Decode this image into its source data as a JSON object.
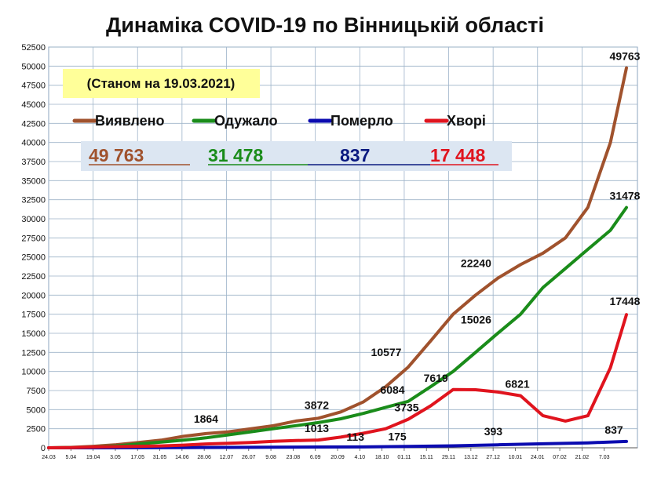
{
  "chart_data": {
    "type": "line",
    "title": "Динаміка COVID-19 по Вінницькій області",
    "subtitle": "(Станом на 19.03.2021)",
    "ylim": [
      0,
      52500
    ],
    "yticks": [
      "0",
      "2500",
      "5000",
      "7500",
      "10000",
      "12500",
      "15000",
      "17500",
      "20000",
      "22500",
      "25000",
      "27500",
      "30000",
      "32500",
      "35000",
      "37500",
      "40000",
      "42500",
      "45000",
      "47500",
      "50000",
      "52500"
    ],
    "ytick_values": [
      0,
      2500,
      5000,
      7500,
      10000,
      12500,
      15000,
      17500,
      20000,
      22500,
      25000,
      27500,
      30000,
      32500,
      35000,
      37500,
      40000,
      42500,
      45000,
      47500,
      50000,
      52500
    ],
    "xticks": [
      "24.03",
      "5.04",
      "19.04",
      "3.05",
      "17.05",
      "31.05",
      "14.06",
      "28.06",
      "12.07",
      "26.07",
      "9.08",
      "23.08",
      "6.09",
      "20.09",
      "4.10",
      "18.10",
      "01.11",
      "15.11",
      "29.11",
      "13.12",
      "27.12",
      "10.01",
      "24.01",
      "07.02",
      "21.02",
      "7.03"
    ],
    "x_grid_every": 2,
    "x_days_total": 360,
    "legend": {
      "placement": "top-left",
      "items": [
        {
          "name": "Виявлено",
          "color": "#a0522d"
        },
        {
          "name": "Одужало",
          "color": "#1a8c1a"
        },
        {
          "name": "Померло",
          "color": "#0b0bb0"
        },
        {
          "name": "Хворі",
          "color": "#e0141e"
        }
      ]
    },
    "totals": [
      {
        "value": "49 763",
        "color": "#a0522d"
      },
      {
        "value": "31 478",
        "color": "#1a8c1a"
      },
      {
        "value": "837",
        "color": "#0b1a80"
      },
      {
        "value": "17 448",
        "color": "#e0141e"
      }
    ],
    "grid": true,
    "series": [
      {
        "name": "Виявлено",
        "color": "#a0522d",
        "points": [
          [
            0,
            0
          ],
          [
            14,
            50
          ],
          [
            28,
            200
          ],
          [
            42,
            400
          ],
          [
            56,
            700
          ],
          [
            70,
            1000
          ],
          [
            84,
            1500
          ],
          [
            98,
            1864
          ],
          [
            112,
            2100
          ],
          [
            126,
            2500
          ],
          [
            140,
            2900
          ],
          [
            154,
            3500
          ],
          [
            168,
            3872
          ],
          [
            182,
            4700
          ],
          [
            196,
            6000
          ],
          [
            210,
            8000
          ],
          [
            224,
            10577
          ],
          [
            238,
            14000
          ],
          [
            252,
            17500
          ],
          [
            266,
            20000
          ],
          [
            280,
            22240
          ],
          [
            294,
            24000
          ],
          [
            308,
            25500
          ],
          [
            322,
            27500
          ],
          [
            336,
            31500
          ],
          [
            350,
            40000
          ],
          [
            360,
            49763
          ]
        ]
      },
      {
        "name": "Одужало",
        "color": "#1a8c1a",
        "points": [
          [
            0,
            0
          ],
          [
            14,
            20
          ],
          [
            28,
            100
          ],
          [
            42,
            250
          ],
          [
            56,
            500
          ],
          [
            70,
            750
          ],
          [
            84,
            1000
          ],
          [
            98,
            1300
          ],
          [
            112,
            1700
          ],
          [
            126,
            2100
          ],
          [
            140,
            2500
          ],
          [
            154,
            2900
          ],
          [
            168,
            3300
          ],
          [
            182,
            3800
          ],
          [
            196,
            4500
          ],
          [
            210,
            5300
          ],
          [
            224,
            6084
          ],
          [
            238,
            8000
          ],
          [
            252,
            10000
          ],
          [
            266,
            12500
          ],
          [
            280,
            15026
          ],
          [
            294,
            17500
          ],
          [
            308,
            21000
          ],
          [
            322,
            23500
          ],
          [
            336,
            26000
          ],
          [
            350,
            28500
          ],
          [
            360,
            31478
          ]
        ]
      },
      {
        "name": "Померло",
        "color": "#0b0bb0",
        "points": [
          [
            0,
            0
          ],
          [
            28,
            5
          ],
          [
            56,
            15
          ],
          [
            84,
            30
          ],
          [
            112,
            55
          ],
          [
            140,
            80
          ],
          [
            168,
            100
          ],
          [
            196,
            113
          ],
          [
            224,
            175
          ],
          [
            252,
            260
          ],
          [
            280,
            393
          ],
          [
            308,
            520
          ],
          [
            336,
            650
          ],
          [
            360,
            837
          ]
        ]
      },
      {
        "name": "Хворі",
        "color": "#e0141e",
        "points": [
          [
            0,
            0
          ],
          [
            14,
            30
          ],
          [
            28,
            100
          ],
          [
            42,
            150
          ],
          [
            56,
            200
          ],
          [
            70,
            250
          ],
          [
            84,
            350
          ],
          [
            98,
            500
          ],
          [
            112,
            600
          ],
          [
            126,
            700
          ],
          [
            140,
            850
          ],
          [
            154,
            950
          ],
          [
            168,
            1013
          ],
          [
            182,
            1400
          ],
          [
            196,
            1900
          ],
          [
            210,
            2500
          ],
          [
            224,
            3735
          ],
          [
            238,
            5500
          ],
          [
            252,
            7619
          ],
          [
            266,
            7600
          ],
          [
            280,
            7300
          ],
          [
            294,
            6821
          ],
          [
            308,
            4200
          ],
          [
            322,
            3500
          ],
          [
            336,
            4200
          ],
          [
            350,
            10500
          ],
          [
            360,
            17448
          ]
        ]
      }
    ],
    "annotations": [
      {
        "text": "49763",
        "x": 360,
        "y": 49763
      },
      {
        "text": "31478",
        "x": 360,
        "y": 31478
      },
      {
        "text": "17448",
        "x": 360,
        "y": 17448
      },
      {
        "text": "837",
        "x": 360,
        "y": 837
      },
      {
        "text": "22240",
        "x": 280,
        "y": 22240
      },
      {
        "text": "15026",
        "x": 280,
        "y": 15026
      },
      {
        "text": "10577",
        "x": 224,
        "y": 10577
      },
      {
        "text": "6084",
        "x": 224,
        "y": 6084
      },
      {
        "text": "7619",
        "x": 252,
        "y": 7619
      },
      {
        "text": "6821",
        "x": 294,
        "y": 6821
      },
      {
        "text": "3872",
        "x": 168,
        "y": 3872
      },
      {
        "text": "3735",
        "x": 224,
        "y": 3735
      },
      {
        "text": "1864",
        "x": 98,
        "y": 1864
      },
      {
        "text": "1013",
        "x": 168,
        "y": 1013
      },
      {
        "text": "113",
        "x": 196,
        "y": 113
      },
      {
        "text": "175",
        "x": 224,
        "y": 175
      },
      {
        "text": "393",
        "x": 280,
        "y": 393
      }
    ]
  }
}
